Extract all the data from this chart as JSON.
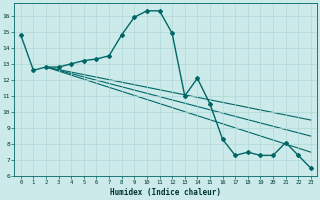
{
  "xlabel": "Humidex (Indice chaleur)",
  "background_color": "#cceaea",
  "grid_color": "#b0d8d8",
  "line_color": "#006666",
  "xlim": [
    -0.5,
    23.5
  ],
  "ylim": [
    6,
    16.8
  ],
  "yticks": [
    6,
    7,
    8,
    9,
    10,
    11,
    12,
    13,
    14,
    15,
    16
  ],
  "xticks": [
    0,
    1,
    2,
    3,
    4,
    5,
    6,
    7,
    8,
    9,
    10,
    11,
    12,
    13,
    14,
    15,
    16,
    17,
    18,
    19,
    20,
    21,
    22,
    23
  ],
  "main_series": {
    "x": [
      0,
      1,
      2,
      3,
      4,
      5,
      6,
      7,
      8,
      9,
      10,
      11,
      12,
      13,
      14,
      15,
      16,
      17,
      18,
      19,
      20,
      21,
      22,
      23
    ],
    "y": [
      14.8,
      12.6,
      12.8,
      12.8,
      13.0,
      13.2,
      13.3,
      13.5,
      14.8,
      15.9,
      16.3,
      16.3,
      14.9,
      11.0,
      12.1,
      10.5,
      8.3,
      7.3,
      7.5,
      7.3,
      7.3,
      8.1,
      7.3,
      6.5
    ]
  },
  "straight_lines": [
    {
      "x": [
        2,
        23
      ],
      "y": [
        12.8,
        9.5
      ]
    },
    {
      "x": [
        2,
        23
      ],
      "y": [
        12.8,
        8.5
      ]
    },
    {
      "x": [
        2,
        23
      ],
      "y": [
        12.8,
        7.5
      ]
    }
  ]
}
